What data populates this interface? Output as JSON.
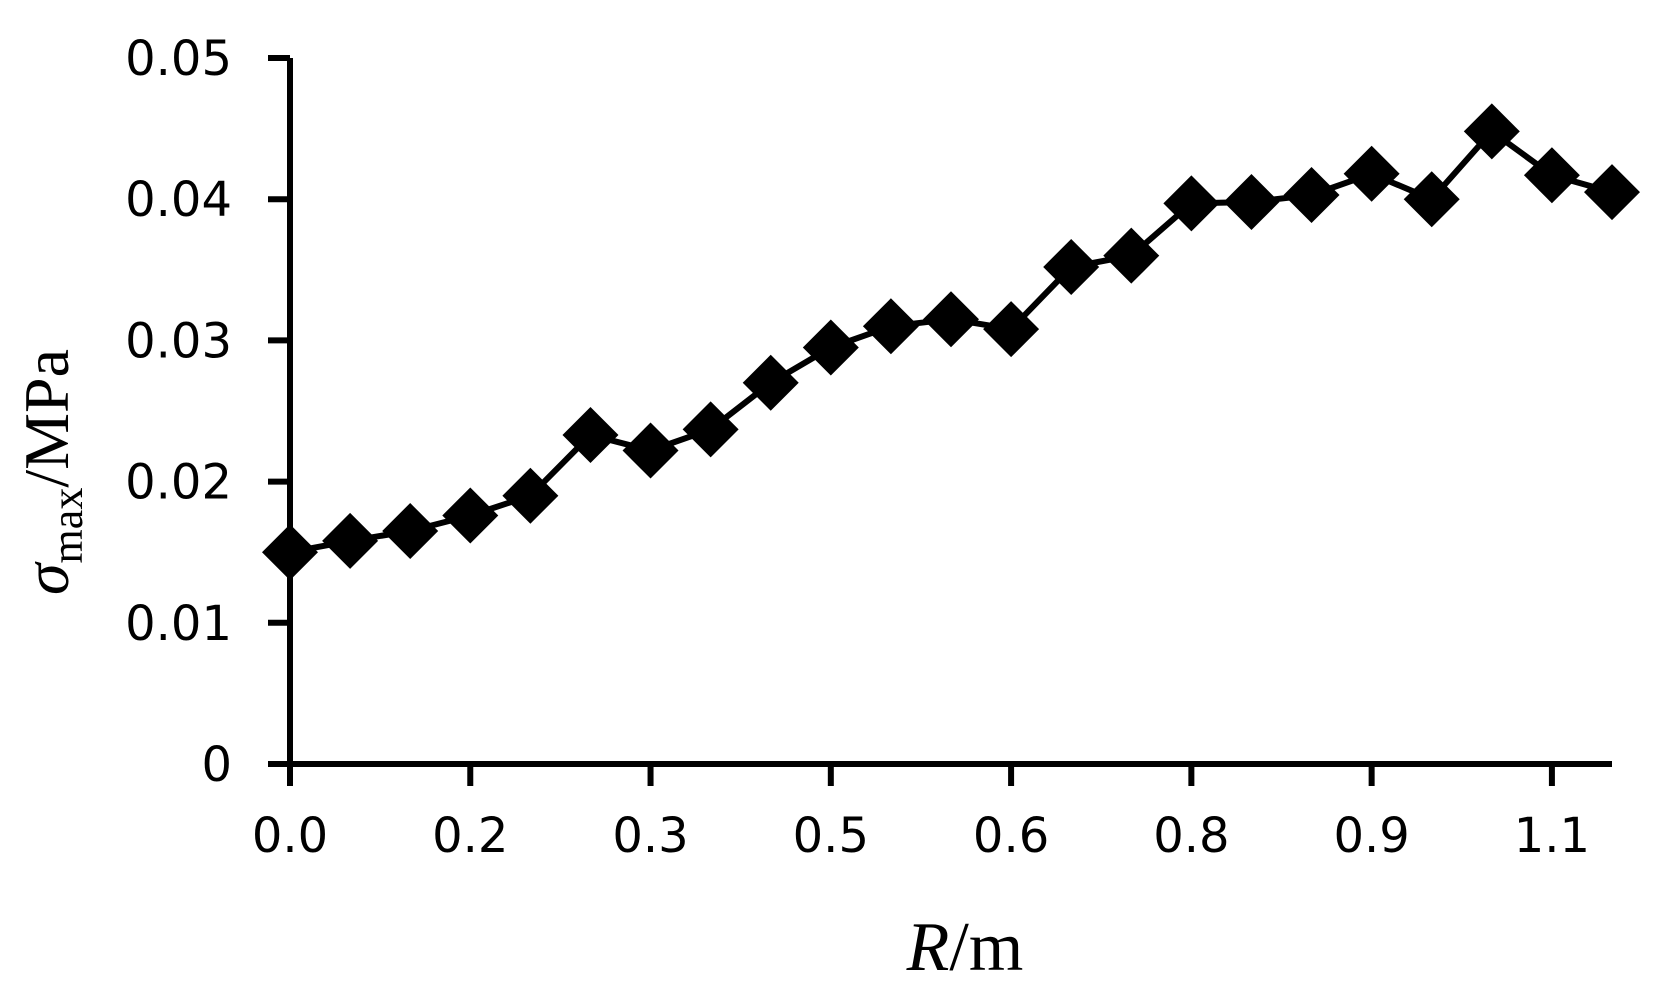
{
  "chart_data": {
    "type": "line",
    "title": "",
    "xlabel": {
      "var": "R",
      "unit": "/m"
    },
    "ylabel": {
      "sym": "σ",
      "sub": "max",
      "unit": "/MPa"
    },
    "xlim": [
      0,
      22
    ],
    "ylim": [
      0,
      0.05
    ],
    "x_tick_labels": [
      "0.0",
      "0.2",
      "0.3",
      "0.5",
      "0.6",
      "0.8",
      "0.9",
      "1.1"
    ],
    "y_tick_labels": [
      "0",
      "0.01",
      "0.02",
      "0.03",
      "0.04",
      "0.05"
    ],
    "grid": false,
    "legend": "none",
    "series": [
      {
        "values": [
          0.015,
          0.0158,
          0.0165,
          0.0176,
          0.019,
          0.0233,
          0.0222,
          0.0237,
          0.027,
          0.0295,
          0.031,
          0.0315,
          0.0308,
          0.0352,
          0.036,
          0.0397,
          0.0398,
          0.0403,
          0.0418,
          0.04,
          0.0448,
          0.0417,
          0.0405
        ]
      }
    ],
    "marker": "diamond",
    "color": "#000000"
  }
}
